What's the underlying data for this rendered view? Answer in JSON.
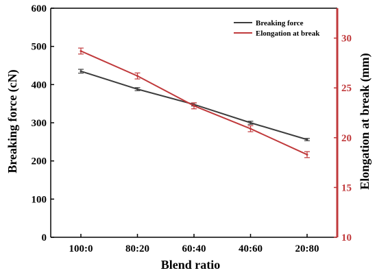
{
  "chart_data": {
    "type": "line",
    "categories": [
      "100:0",
      "80:20",
      "60:40",
      "40:60",
      "20:80"
    ],
    "xlabel": "Blend ratio",
    "y_left": {
      "label": "Breaking force (cN)",
      "range": [
        0,
        600
      ],
      "ticks": [
        0,
        100,
        200,
        300,
        400,
        500,
        600
      ],
      "color": "#000000"
    },
    "y_right": {
      "label": "Elongation at break (mm)",
      "range": [
        10,
        33
      ],
      "ticks": [
        10,
        15,
        20,
        25,
        30
      ],
      "color": "#c0393b"
    },
    "series": [
      {
        "name": "Breaking force",
        "axis": "left",
        "color": "#3d3d3d",
        "values": [
          435,
          388,
          348,
          300,
          256
        ],
        "errors": [
          5,
          4,
          4,
          4,
          3
        ]
      },
      {
        "name": "Elongation at break",
        "axis": "right",
        "color": "#c0393b",
        "values": [
          28.7,
          26.2,
          23.2,
          20.9,
          18.3
        ],
        "errors": [
          0.3,
          0.3,
          0.3,
          0.3,
          0.3
        ]
      }
    ],
    "legend_position": "top-right",
    "grid": false
  }
}
